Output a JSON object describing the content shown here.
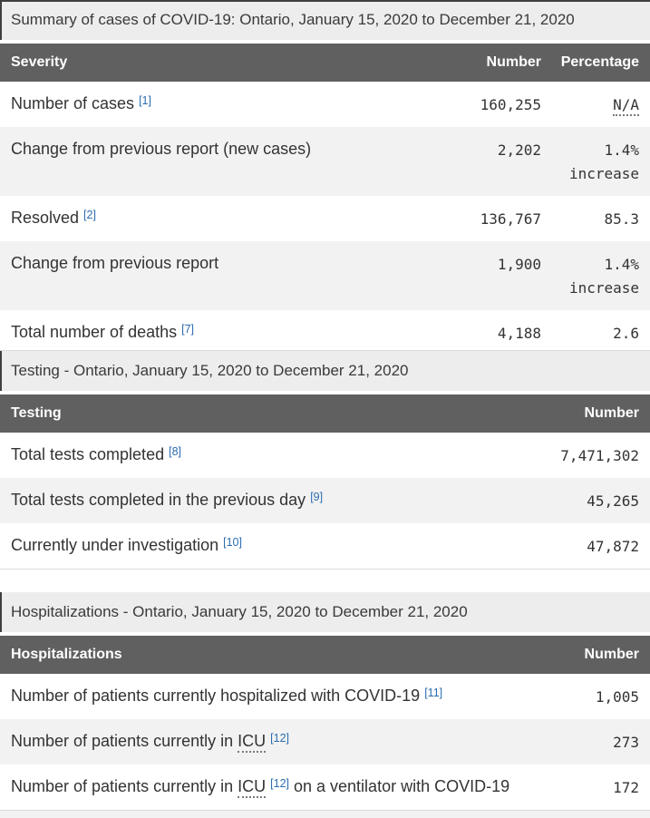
{
  "page": {
    "colors": {
      "header_bg": "#606060",
      "header_text": "#ffffff",
      "caption_bg": "#ededed",
      "stripe_bg": "#f2f2f2",
      "link_blue": "#2b6cb0",
      "text": "#333333"
    }
  },
  "tables": [
    {
      "id": "summary-of-cases",
      "caption": "Summary of cases of COVID-19: Ontario, January 15, 2020 to December 21, 2020",
      "columns": [
        "Severity",
        "Number",
        "Percentage"
      ],
      "rows": [
        {
          "label": [
            {
              "t": "text",
              "v": "Number of cases "
            },
            {
              "t": "footnote",
              "v": "[1]"
            }
          ],
          "number": "160,255",
          "percentage": [
            {
              "t": "abbr",
              "v": "N/A"
            }
          ]
        },
        {
          "label": [
            {
              "t": "text",
              "v": "Change from previous report (new cases)"
            }
          ],
          "number": "2,202",
          "percentage": [
            {
              "t": "text",
              "v": "1.4% increase"
            }
          ]
        },
        {
          "label": [
            {
              "t": "text",
              "v": "Resolved "
            },
            {
              "t": "footnote",
              "v": "[2]"
            }
          ],
          "number": "136,767",
          "percentage": [
            {
              "t": "text",
              "v": "85.3"
            }
          ]
        },
        {
          "label": [
            {
              "t": "text",
              "v": "Change from previous report"
            }
          ],
          "number": "1,900",
          "percentage": [
            {
              "t": "text",
              "v": "1.4% increase"
            }
          ]
        },
        {
          "label": [
            {
              "t": "text",
              "v": "Total number of deaths "
            },
            {
              "t": "footnote",
              "v": "[7]"
            }
          ],
          "number": "4,188",
          "percentage": [
            {
              "t": "text",
              "v": "2.6"
            }
          ]
        }
      ]
    },
    {
      "id": "testing",
      "caption": "Testing - Ontario, January 15, 2020 to December 21, 2020",
      "columns": [
        "Testing",
        "Number"
      ],
      "rows": [
        {
          "label": [
            {
              "t": "text",
              "v": "Total tests completed "
            },
            {
              "t": "footnote",
              "v": "[8]"
            }
          ],
          "number": "7,471,302"
        },
        {
          "label": [
            {
              "t": "text",
              "v": "Total tests completed in the previous day "
            },
            {
              "t": "footnote",
              "v": "[9]"
            }
          ],
          "number": "45,265"
        },
        {
          "label": [
            {
              "t": "text",
              "v": "Currently under investigation "
            },
            {
              "t": "footnote",
              "v": "[10]"
            }
          ],
          "number": "47,872"
        }
      ]
    },
    {
      "id": "hospitalizations",
      "caption": "Hospitalizations - Ontario, January 15, 2020 to December 21, 2020",
      "columns": [
        "Hospitalizations",
        "Number"
      ],
      "rows": [
        {
          "label": [
            {
              "t": "text",
              "v": "Number of patients currently hospitalized with COVID-19 "
            },
            {
              "t": "footnote",
              "v": "[11]"
            }
          ],
          "number": "1,005"
        },
        {
          "label": [
            {
              "t": "text",
              "v": "Number of patients currently in "
            },
            {
              "t": "abbr",
              "v": "ICU"
            },
            {
              "t": "text",
              "v": " "
            },
            {
              "t": "footnote",
              "v": "[12]"
            }
          ],
          "number": "273"
        },
        {
          "label": [
            {
              "t": "text",
              "v": "Number of patients currently in "
            },
            {
              "t": "abbr",
              "v": "ICU"
            },
            {
              "t": "text",
              "v": " "
            },
            {
              "t": "footnote",
              "v": "[12]"
            },
            {
              "t": "text",
              "v": " on a ventilator with COVID-19"
            }
          ],
          "number": "172"
        }
      ]
    }
  ]
}
